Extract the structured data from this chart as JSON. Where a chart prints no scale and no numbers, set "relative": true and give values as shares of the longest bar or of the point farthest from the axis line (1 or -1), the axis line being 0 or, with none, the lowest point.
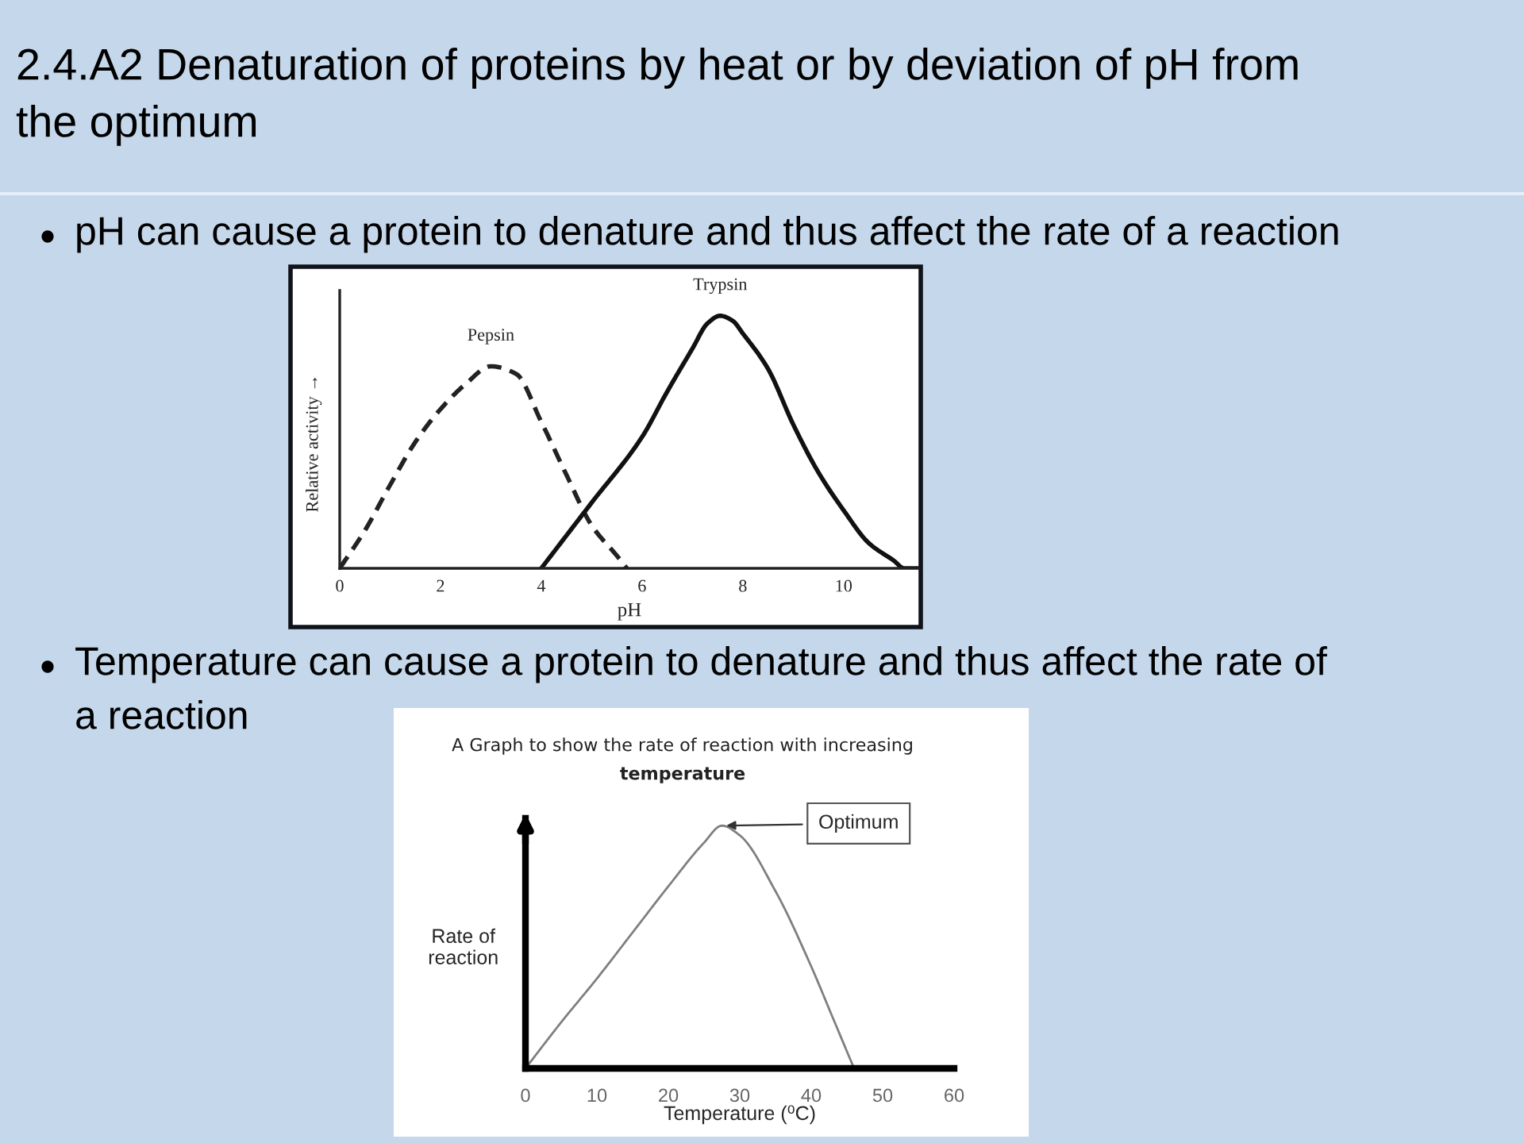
{
  "chart_data": [
    {
      "type": "line",
      "title": "2.4.A2 Denaturation of proteins by heat or by deviation of pH from the optimum",
      "xlabel": "pH",
      "ylabel": "Relative activity →",
      "relative": true,
      "xlim": [
        0,
        11.5
      ],
      "xticks": [
        0,
        2,
        4,
        6,
        8,
        10
      ],
      "annotations": [
        "pH can cause a protein to denature and thus affect the rate of a reaction"
      ],
      "series": [
        {
          "name": "Pepsin",
          "color": "#222222",
          "line_style": "dashed",
          "x": [
            0,
            0.5,
            1,
            1.5,
            2,
            2.5,
            3,
            3.5,
            4,
            4.5,
            5,
            5.5,
            5.7
          ],
          "values": [
            0,
            0.15,
            0.33,
            0.5,
            0.63,
            0.73,
            0.8,
            0.77,
            0.58,
            0.37,
            0.17,
            0.05,
            0
          ]
        },
        {
          "name": "Trypsin",
          "color": "#111111",
          "line_style": "solid",
          "x": [
            4,
            5,
            6,
            6.5,
            7,
            7.3,
            7.55,
            7.8,
            8,
            8.5,
            9,
            9.5,
            10,
            10.5,
            11,
            11.2,
            11.5
          ],
          "values": [
            0,
            0.26,
            0.52,
            0.7,
            0.87,
            0.97,
            1.0,
            0.98,
            0.93,
            0.79,
            0.57,
            0.38,
            0.23,
            0.1,
            0.03,
            0,
            0
          ]
        }
      ]
    },
    {
      "type": "line",
      "title": "A Graph to show the rate of reaction with increasing temperature",
      "xlabel": "Temperature (⁰C)",
      "ylabel": "Rate of reaction",
      "relative": true,
      "xlim": [
        0,
        60
      ],
      "xticks": [
        0,
        10,
        20,
        30,
        40,
        50,
        60
      ],
      "annotations": [
        "Temperature can cause a protein to denature and thus affect the rate of a reaction",
        {
          "text": "Optimum",
          "x": 27.5,
          "y": 1
        }
      ],
      "series": [
        {
          "color": "#7f7f7f",
          "x": [
            0,
            5,
            10,
            15,
            20,
            25,
            27.5,
            30,
            35,
            40,
            43,
            46
          ],
          "values": [
            0,
            0.19,
            0.37,
            0.56,
            0.75,
            0.93,
            1.0,
            0.96,
            0.73,
            0.42,
            0.21,
            0
          ]
        }
      ]
    }
  ]
}
